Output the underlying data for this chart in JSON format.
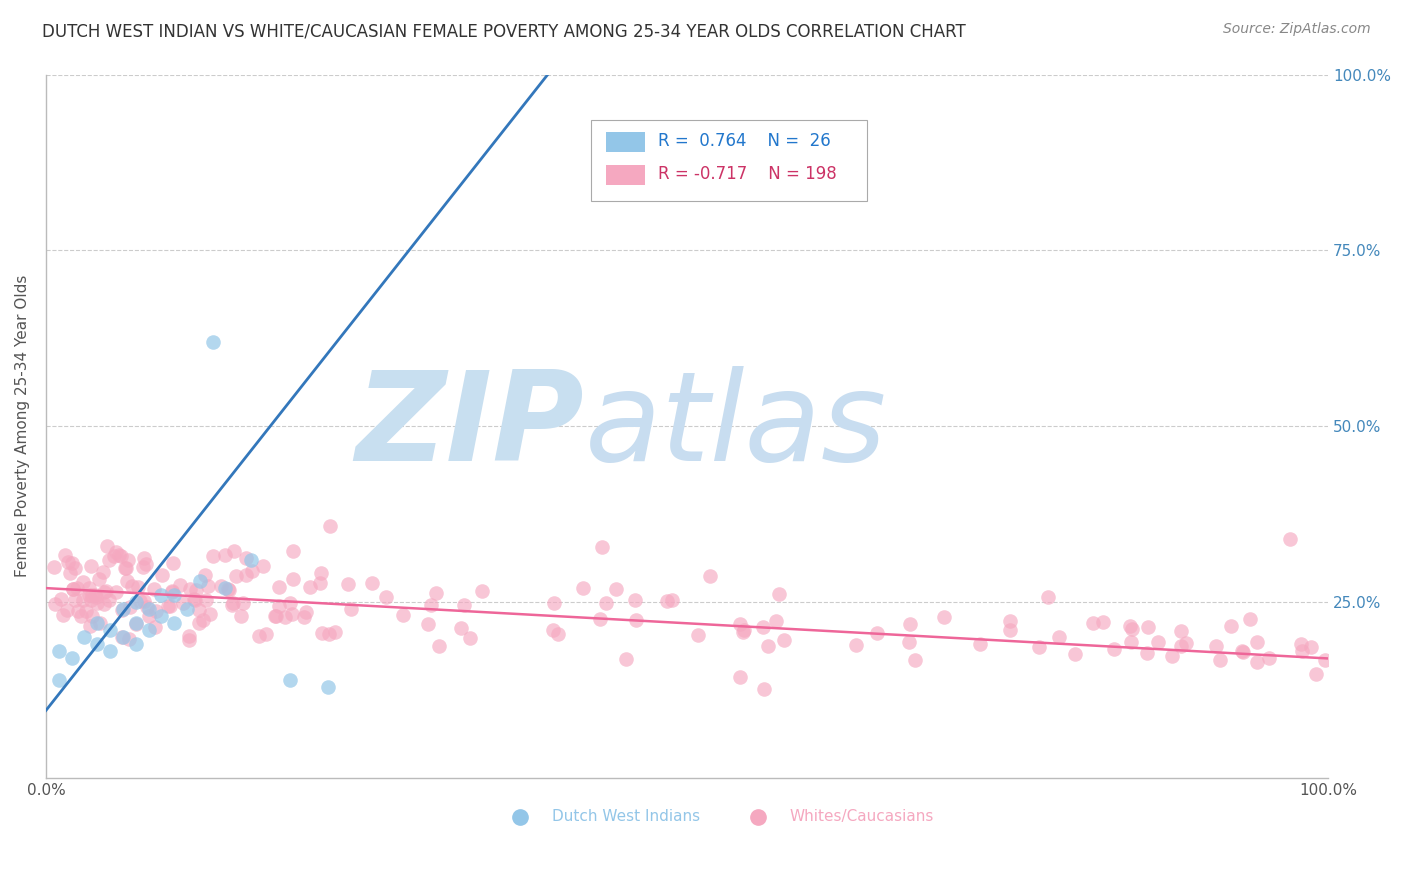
{
  "title": "DUTCH WEST INDIAN VS WHITE/CAUCASIAN FEMALE POVERTY AMONG 25-34 YEAR OLDS CORRELATION CHART",
  "source": "Source: ZipAtlas.com",
  "ylabel": "Female Poverty Among 25-34 Year Olds",
  "blue_R": 0.764,
  "blue_N": 26,
  "pink_R": -0.717,
  "pink_N": 198,
  "blue_color": "#93c6e8",
  "pink_color": "#f5a8c0",
  "blue_line_color": "#3377bb",
  "pink_line_color": "#ee6699",
  "background_color": "#ffffff",
  "watermark_zip": "ZIP",
  "watermark_atlas": "atlas",
  "watermark_color_zip": "#c8dff0",
  "watermark_color_atlas": "#c8ddf0",
  "grid_color": "#cccccc",
  "title_fontsize": 12,
  "xlim": [
    0,
    1
  ],
  "ylim": [
    0,
    1
  ],
  "blue_line_x": [
    -0.02,
    0.4
  ],
  "blue_line_y": [
    0.05,
    1.02
  ],
  "pink_line_x": [
    0.0,
    1.0
  ],
  "pink_line_y": [
    0.27,
    0.17
  ]
}
